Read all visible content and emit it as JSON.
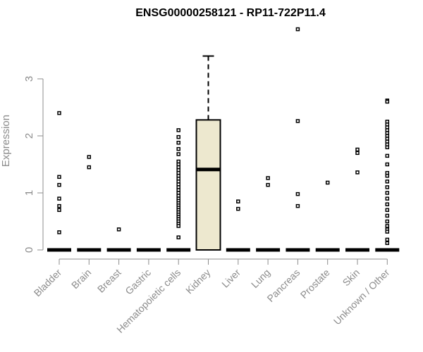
{
  "chart_data": {
    "type": "box",
    "title": "ENSG00000258121 - RP11-722P11.4",
    "xlabel": "",
    "ylabel": "Expression",
    "ylim": [
      0,
      3.95
    ],
    "yticks": [
      0,
      1,
      2,
      3
    ],
    "ytick_labels": [
      "0",
      "1",
      "2",
      "3"
    ],
    "box_fill": "#ede8cf",
    "categories": [
      "Bladder",
      "Brain",
      "Breast",
      "Gastric",
      "Hematopoietic cells",
      "Kidney",
      "Liver",
      "Lung",
      "Pancreas",
      "Prostate",
      "Skin",
      "Unknown / Other"
    ],
    "boxes": [
      {
        "category": "Bladder",
        "min": 0,
        "q1": 0,
        "median": 0,
        "q3": 0,
        "max": 0,
        "outliers": [
          2.4,
          1.28,
          1.14,
          0.9,
          0.77,
          0.7,
          0.31
        ]
      },
      {
        "category": "Brain",
        "min": 0,
        "q1": 0,
        "median": 0,
        "q3": 0,
        "max": 0,
        "outliers": [
          1.63,
          1.45
        ]
      },
      {
        "category": "Breast",
        "min": 0,
        "q1": 0,
        "median": 0,
        "q3": 0,
        "max": 0,
        "outliers": [
          0.36
        ]
      },
      {
        "category": "Gastric",
        "min": 0,
        "q1": 0,
        "median": 0,
        "q3": 0,
        "max": 0,
        "outliers": []
      },
      {
        "category": "Hematopoietic cells",
        "min": 0,
        "q1": 0,
        "median": 0,
        "q3": 0,
        "max": 0,
        "outliers": [
          2.1,
          1.98,
          1.88,
          1.77,
          1.68,
          1.55,
          1.5,
          1.45,
          1.4,
          1.35,
          1.3,
          1.25,
          1.2,
          1.15,
          1.1,
          1.05,
          1.0,
          0.95,
          0.9,
          0.86,
          0.82,
          0.78,
          0.74,
          0.7,
          0.66,
          0.62,
          0.58,
          0.54,
          0.5,
          0.46,
          0.42,
          0.22
        ]
      },
      {
        "category": "Kidney",
        "min": 0,
        "q1": 0,
        "median": 1.41,
        "q3": 2.28,
        "max": 3.4,
        "outliers": []
      },
      {
        "category": "Liver",
        "min": 0,
        "q1": 0,
        "median": 0,
        "q3": 0,
        "max": 0,
        "outliers": [
          0.85,
          0.72
        ]
      },
      {
        "category": "Lung",
        "min": 0,
        "q1": 0,
        "median": 0,
        "q3": 0,
        "max": 0,
        "outliers": [
          1.26,
          1.14
        ]
      },
      {
        "category": "Pancreas",
        "min": 0,
        "q1": 0,
        "median": 0,
        "q3": 0,
        "max": 0,
        "outliers": [
          3.87,
          2.26,
          0.98,
          0.77
        ]
      },
      {
        "category": "Prostate",
        "min": 0,
        "q1": 0,
        "median": 0,
        "q3": 0,
        "max": 0,
        "outliers": [
          1.18
        ]
      },
      {
        "category": "Skin",
        "min": 0,
        "q1": 0,
        "median": 0,
        "q3": 0,
        "max": 0,
        "outliers": [
          1.76,
          1.7,
          1.36
        ]
      },
      {
        "category": "Unknown / Other",
        "min": 0,
        "q1": 0,
        "median": 0,
        "q3": 0,
        "max": 0,
        "outliers": [
          2.62,
          2.6,
          2.25,
          2.2,
          2.15,
          2.1,
          2.05,
          2.0,
          1.95,
          1.9,
          1.85,
          1.8,
          1.65,
          1.5,
          1.35,
          1.3,
          1.2,
          1.1,
          1.0,
          0.9,
          0.8,
          0.7,
          0.6,
          0.5,
          0.42,
          0.36,
          0.32,
          0.18,
          0.12
        ]
      }
    ],
    "grid": false,
    "legend": "none"
  }
}
